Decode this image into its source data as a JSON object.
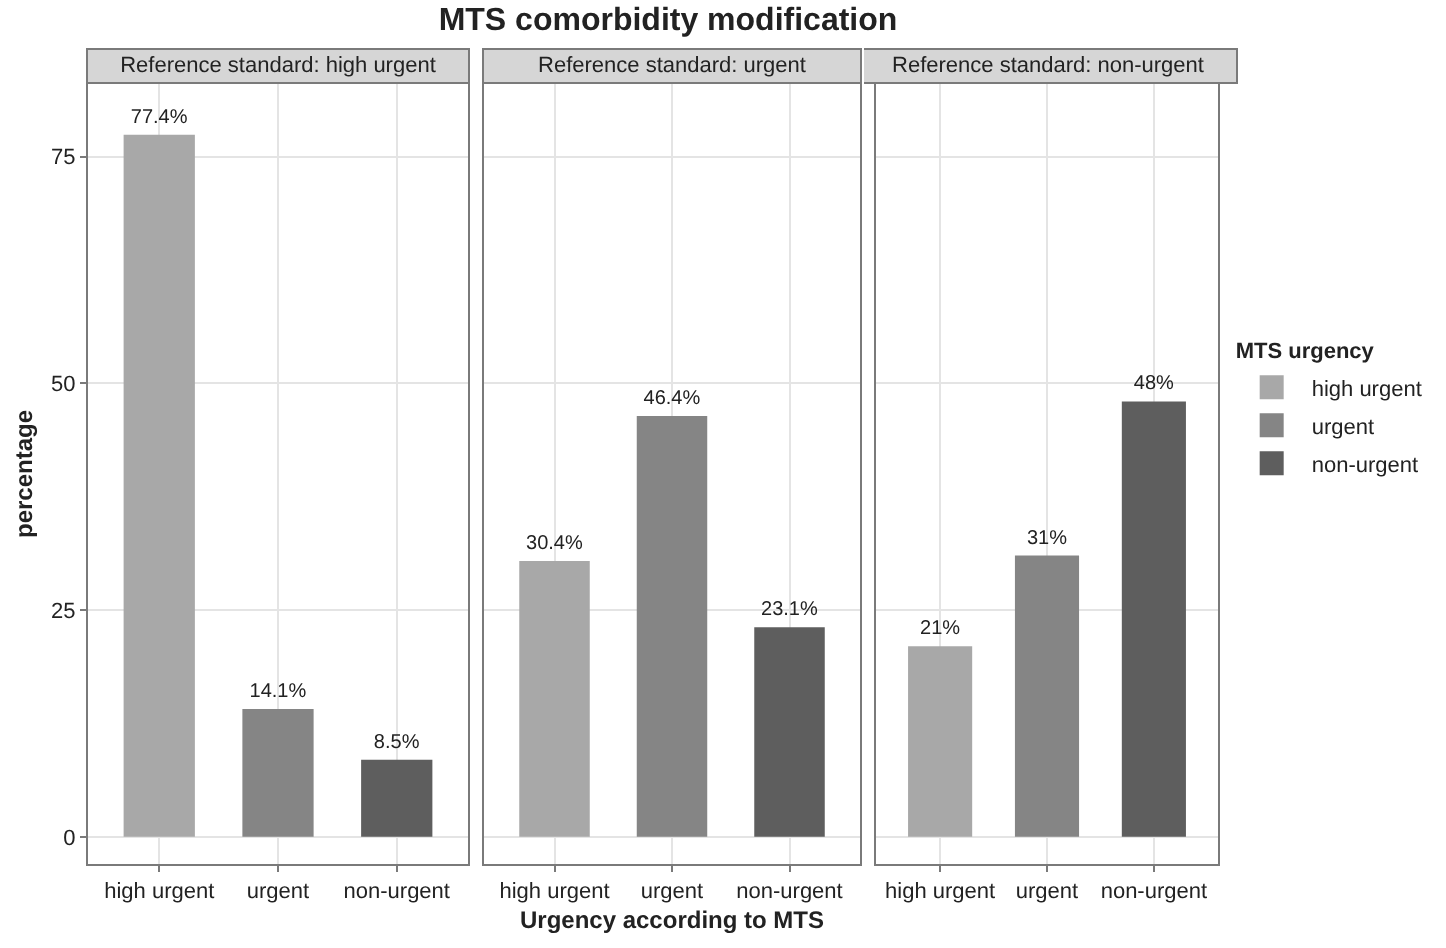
{
  "chart_data": [
    {
      "type": "bar",
      "subtitle": "Reference standard: high urgent",
      "ylabel": "percentage",
      "categories": [
        "high urgent",
        "urgent",
        "non-urgent"
      ],
      "values": [
        77.4,
        14.1,
        8.5
      ],
      "value_labels": [
        "77.4%",
        "14.1%",
        "8.5%"
      ],
      "colors": [
        "#a8a8a8",
        "#858585",
        "#5e5e5e"
      ],
      "ylim": [
        -3,
        83
      ],
      "yticks": [
        0,
        25,
        50,
        75
      ],
      "grid": true
    },
    {
      "type": "bar",
      "title": "MTS comorbidity modification",
      "subtitle": "Reference standard: urgent",
      "xlabel": "Urgency according to MTS",
      "categories": [
        "high urgent",
        "urgent",
        "non-urgent"
      ],
      "values": [
        30.4,
        46.4,
        23.1
      ],
      "value_labels": [
        "30.4%",
        "46.4%",
        "23.1%"
      ],
      "colors": [
        "#a8a8a8",
        "#858585",
        "#5e5e5e"
      ],
      "ylim": [
        -3,
        83
      ],
      "yticks": [
        0,
        25,
        50,
        75
      ],
      "grid": true,
      "tick_labels": "x"
    },
    {
      "type": "bar",
      "subtitle": "Reference standard: non-urgent",
      "legend_title": "MTS urgency",
      "legend": "right",
      "categories": [
        "high urgent",
        "urgent",
        "non-urgent"
      ],
      "series": [
        {
          "name": "high urgent",
          "color": "#a8a8a8",
          "values": [
            21,
            null,
            null
          ],
          "value_labels": [
            "21%",
            null,
            null
          ]
        },
        {
          "name": "urgent",
          "color": "#858585",
          "values": [
            null,
            31,
            null
          ],
          "value_labels": [
            null,
            "31%",
            null
          ]
        },
        {
          "name": "non-urgent",
          "color": "#5e5e5e",
          "values": [
            null,
            null,
            48
          ],
          "value_labels": [
            null,
            null,
            "48%"
          ]
        }
      ],
      "ylim": [
        -3,
        83
      ],
      "yticks": [
        0,
        25,
        50,
        75
      ],
      "grid": true,
      "tick_labels": "x"
    }
  ]
}
